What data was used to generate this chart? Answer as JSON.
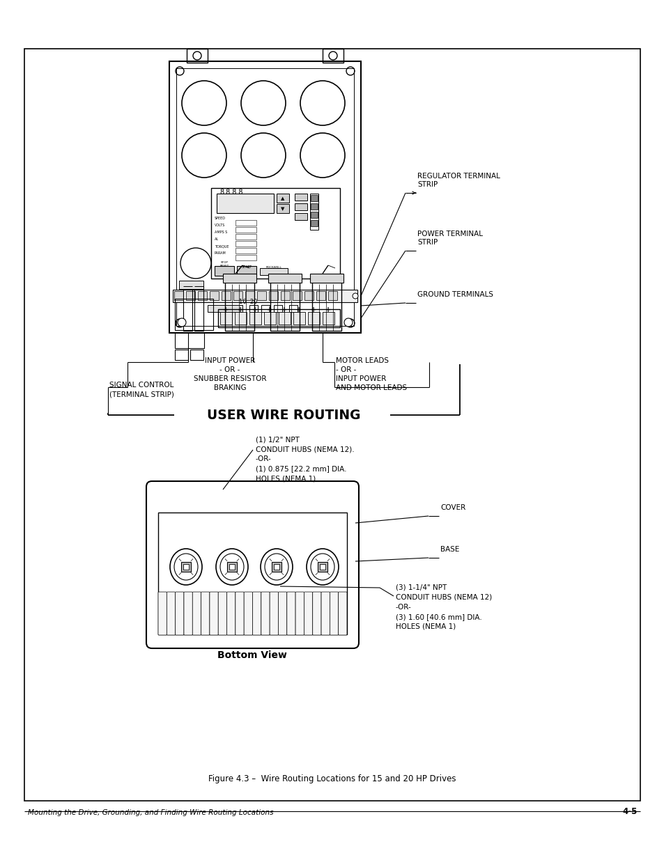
{
  "page_bg": "#ffffff",
  "title": "USER WIRE ROUTING",
  "figure_caption": "Figure 4.3 –  Wire Routing Locations for 15 and 20 HP Drives",
  "footer_left": "Mounting the Drive, Grounding, and Finding Wire Routing Locations",
  "footer_right": "4-5",
  "bottom_view_label": "Bottom View",
  "label_reg": "REGULATOR TERMINAL\nSTRIP",
  "label_pwr": "POWER TERMINAL\nSTRIP",
  "label_gnd": "GROUND TERMINALS",
  "label_sig": "SIGNAL CONTROL\n(TERMINAL STRIP)",
  "label_inp": "INPUT POWER\n- OR -\nSNUBBER RESISTOR\nBRAKING",
  "label_mot": "MOTOR LEADS\n- OR -\nINPUT POWER\nAND MOTOR LEADS",
  "label_cond_top_1": "(1) 1/2\" NPT",
  "label_cond_top_2": "CONDUIT HUBS (NEMA 12).",
  "label_cond_top_3": "-OR-",
  "label_cond_top_4": "(1) 0.875 [22.2 mm] DIA.",
  "label_cond_top_5": "HOLES (NEMA 1).",
  "label_cover": "COVER",
  "label_base": "BASE",
  "label_cond_bot_1": "(3) 1-1/4\" NPT",
  "label_cond_bot_2": "CONDUIT HUBS (NEMA 12)",
  "label_cond_bot_3": "-OR-",
  "label_cond_bot_4": "(3) 1.60 [40.6 mm] DIA.",
  "label_cond_bot_5": "HOLES (NEMA 1)"
}
